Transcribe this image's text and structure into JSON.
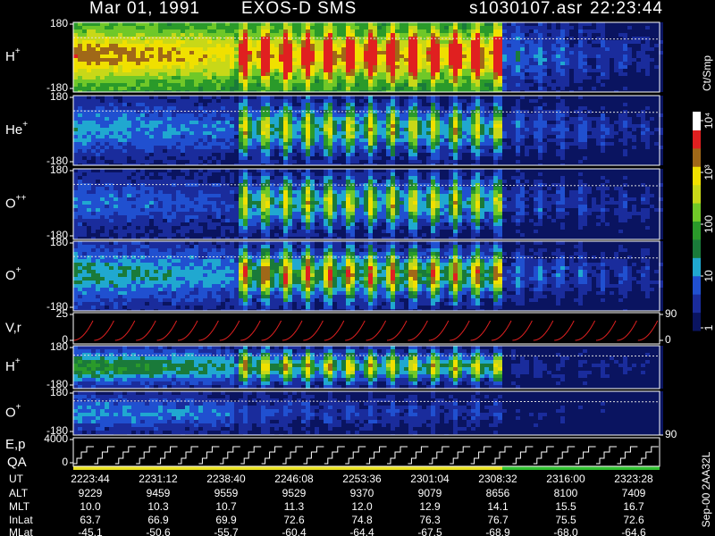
{
  "header": {
    "date": "Mar 01, 1991",
    "instrument": "EXOS-D SMS",
    "file": "s1030107.asr",
    "time": "22:23:44"
  },
  "panels": [
    {
      "label": "H",
      "charge": "+",
      "left_ticks": [
        180,
        -180
      ],
      "right_ticks": []
    },
    {
      "label": "He",
      "charge": "+",
      "left_ticks": [
        180,
        -180
      ],
      "right_ticks": []
    },
    {
      "label": "O",
      "charge": "++",
      "left_ticks": [
        180,
        -180
      ],
      "right_ticks": []
    },
    {
      "label": "O",
      "charge": "+",
      "left_ticks": [
        180,
        -180
      ],
      "right_ticks": []
    },
    {
      "label": "V,r",
      "left_ticks": [
        25,
        0
      ],
      "right_ticks": [
        90,
        0
      ]
    },
    {
      "label": "H",
      "charge": "+",
      "left_ticks": [
        180,
        -180
      ],
      "right_ticks": []
    },
    {
      "label": "O",
      "charge": "+",
      "left_ticks": [
        180,
        -180
      ],
      "right_ticks": [
        90
      ]
    },
    {
      "label": "E,p",
      "sublabel": "QA",
      "left_ticks": [
        4000,
        0
      ],
      "right_ticks": []
    }
  ],
  "colorbar": {
    "unit": "Ct/Smp",
    "ticks": [
      1,
      10,
      100,
      {
        "value": 1000,
        "label": "10³"
      },
      {
        "value": 10000,
        "label": "10⁴"
      }
    ]
  },
  "footer": {
    "rows": [
      {
        "label": "UT",
        "values": [
          "2223:44",
          "2231:12",
          "2238:40",
          "2246:08",
          "2253:36",
          "2301:04",
          "2308:32",
          "2316:00",
          "2323:28"
        ]
      },
      {
        "label": "ALT",
        "values": [
          "9229",
          "9459",
          "9559",
          "9529",
          "9370",
          "9079",
          "8656",
          "8100",
          "7409"
        ]
      },
      {
        "label": "MLT",
        "values": [
          "10.0",
          "10.3",
          "10.7",
          "11.3",
          "12.0",
          "12.9",
          "14.1",
          "15.5",
          "16.7"
        ]
      },
      {
        "label": "InLat",
        "values": [
          "63.7",
          "66.9",
          "69.9",
          "72.6",
          "74.8",
          "76.3",
          "76.7",
          "75.5",
          "72.6"
        ]
      },
      {
        "label": "MLat",
        "values": [
          "-45.1",
          "-50.6",
          "-55.7",
          "-60.4",
          "-64.4",
          "-67.5",
          "-68.9",
          "-68.0",
          "-64.6"
        ]
      }
    ],
    "code": "Sep-00 2AA32L"
  }
}
